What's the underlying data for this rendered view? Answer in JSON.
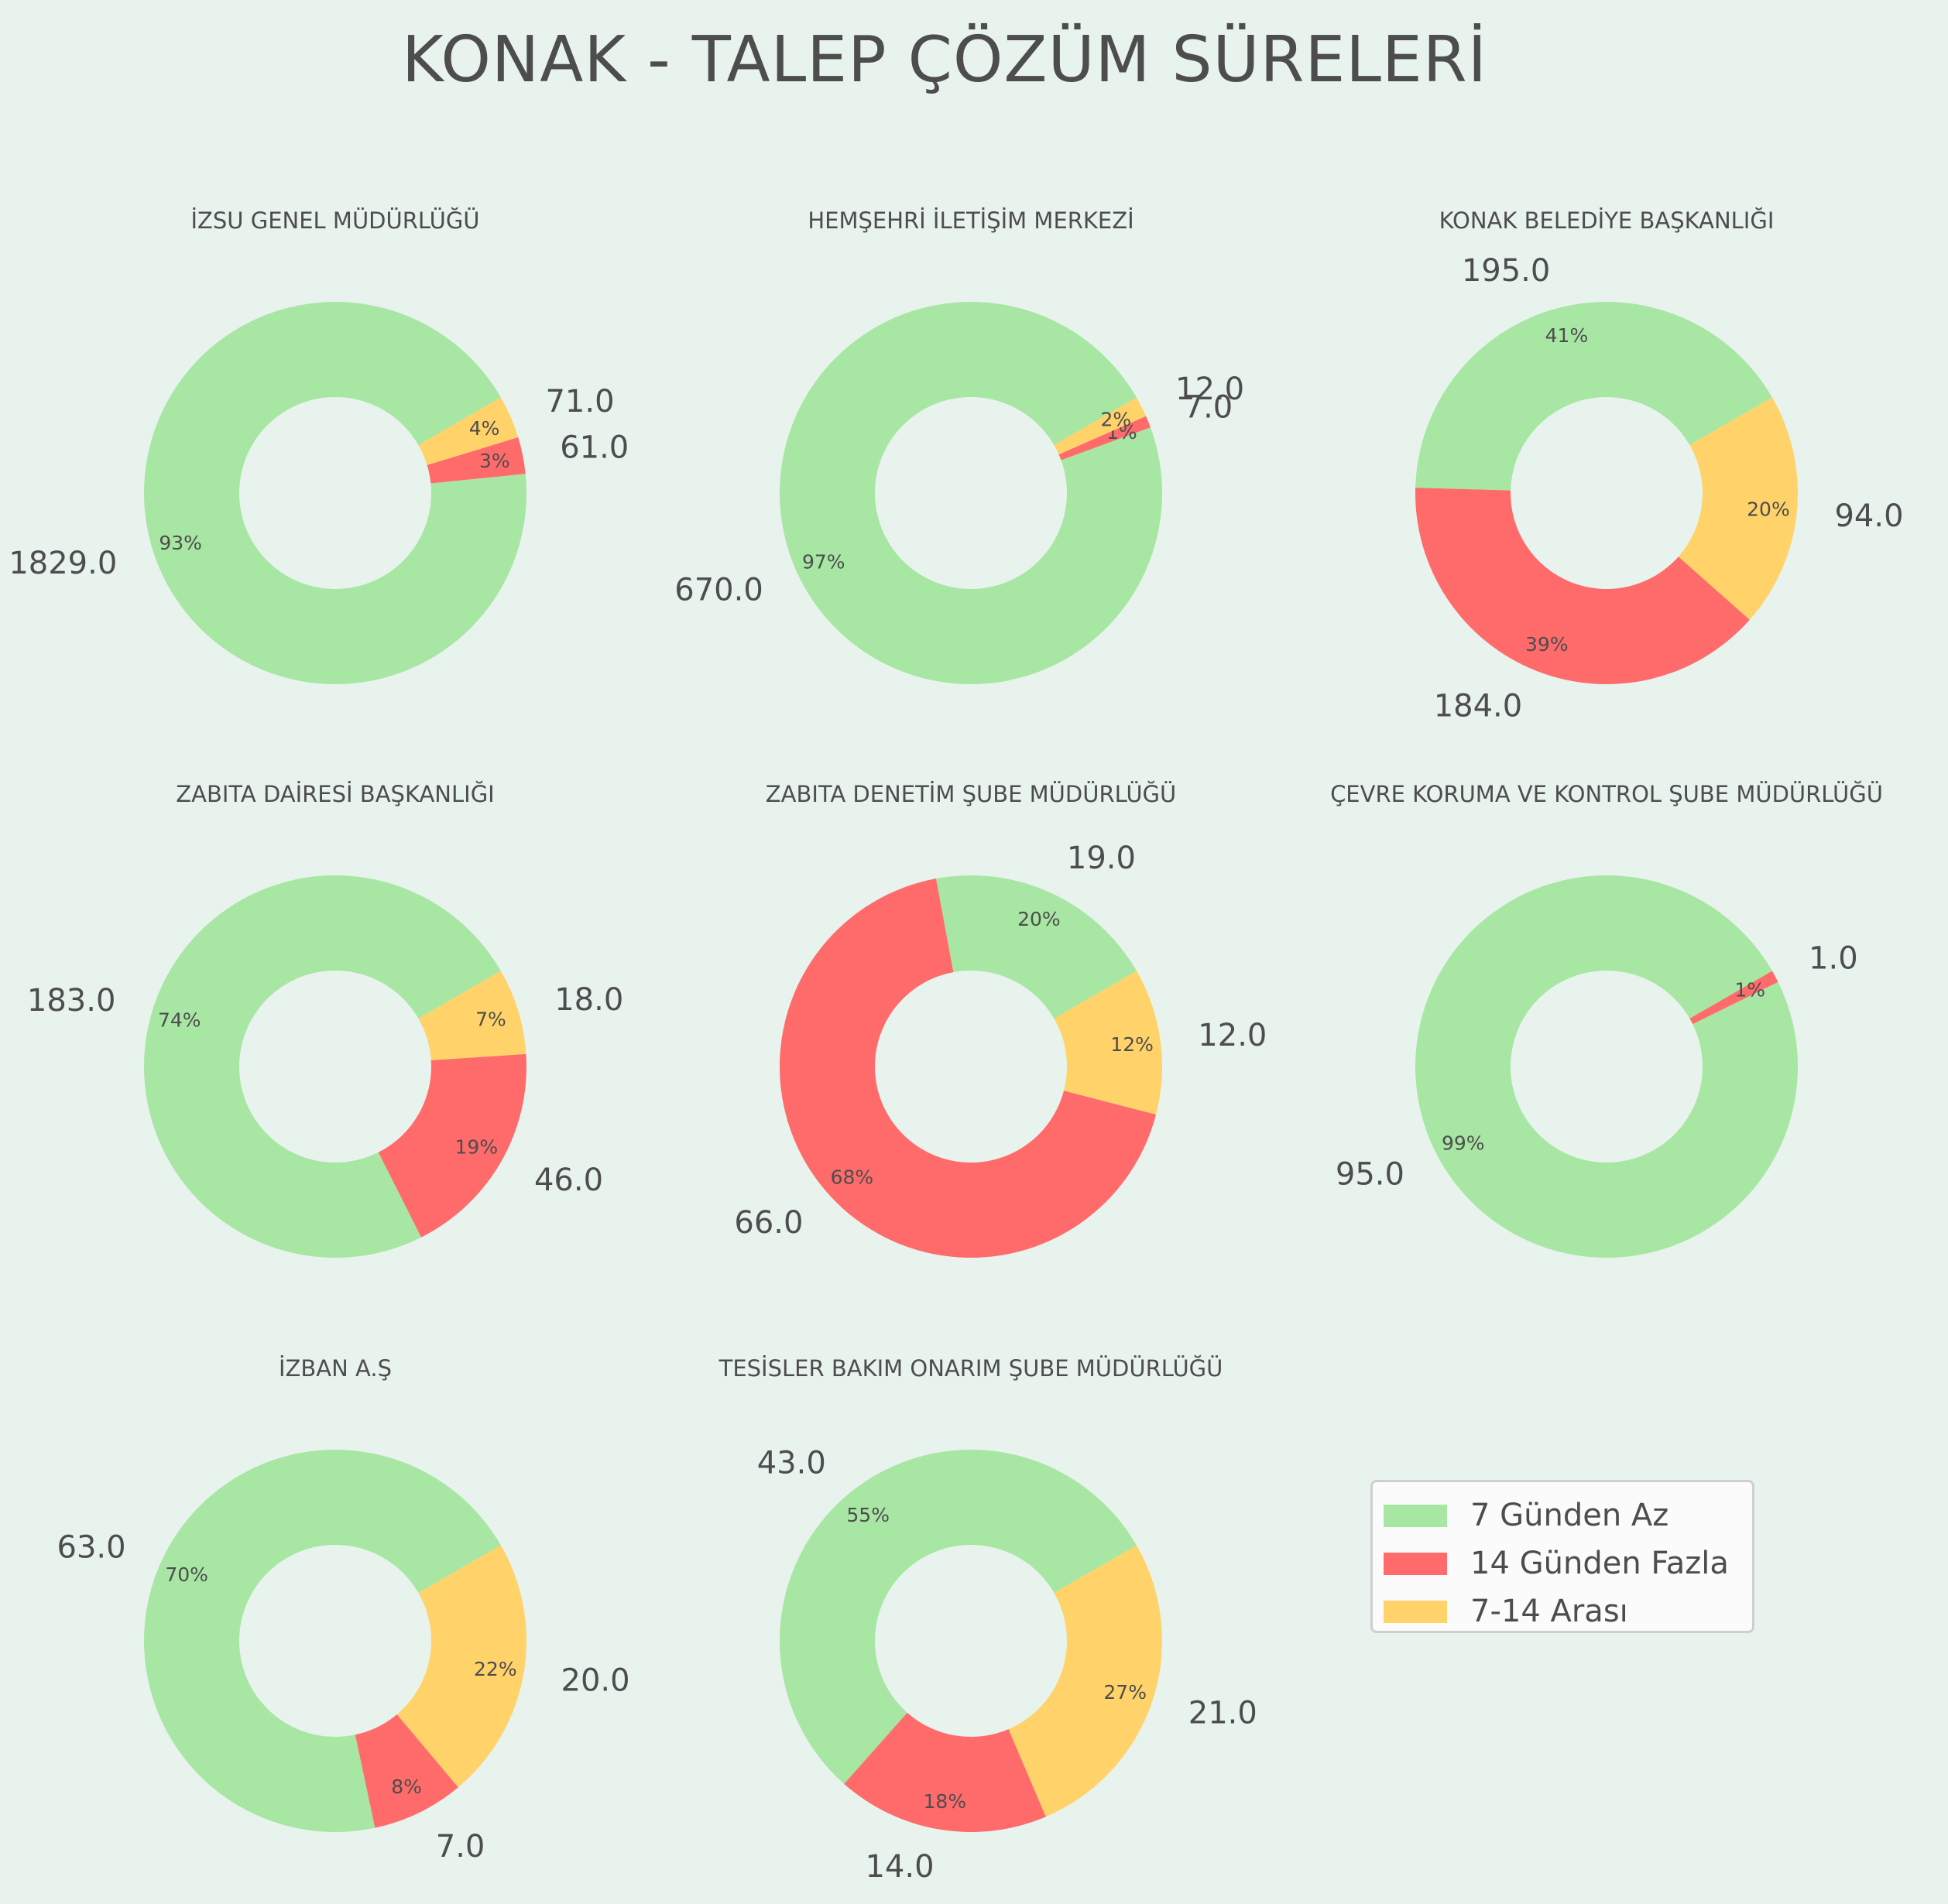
{
  "title": "KONAK - TALEP ÇÖZÜM SÜRELERİ",
  "legend": {
    "items": [
      {
        "label": "7 Günden Az",
        "color": "#a8e6a3"
      },
      {
        "label": "14 Günden Fazla",
        "color": "#ff6b6b"
      },
      {
        "label": "7-14 Arası",
        "color": "#ffd369"
      }
    ]
  },
  "chart_data": [
    {
      "type": "pie",
      "title": "İZSU GENEL MÜDÜRLÜĞÜ",
      "categories": [
        "7 Günden Az",
        "14 Günden Fazla",
        "7-14 Arası"
      ],
      "values": [
        1829.0,
        61.0,
        71.0
      ],
      "value_labels": [
        "1829.0",
        "61.0",
        "71.0"
      ],
      "percent_labels": [
        "93%",
        "3%",
        "4%"
      ]
    },
    {
      "type": "pie",
      "title": "HEMŞEHRİ İLETİŞİM MERKEZİ",
      "categories": [
        "7 Günden Az",
        "14 Günden Fazla",
        "7-14 Arası"
      ],
      "values": [
        670.0,
        7.0,
        12.0
      ],
      "value_labels": [
        "670.0",
        "7.0",
        "12.0"
      ],
      "percent_labels": [
        "97%",
        "1%",
        "2%"
      ]
    },
    {
      "type": "pie",
      "title": "KONAK BELEDİYE BAŞKANLIĞI",
      "categories": [
        "7 Günden Az",
        "14 Günden Fazla",
        "7-14 Arası"
      ],
      "values": [
        195.0,
        184.0,
        94.0
      ],
      "value_labels": [
        "195.0",
        "184.0",
        "94.0"
      ],
      "percent_labels": [
        "41%",
        "39%",
        "20%"
      ]
    },
    {
      "type": "pie",
      "title": "ZABITA DAİRESİ BAŞKANLIĞI",
      "categories": [
        "7 Günden Az",
        "14 Günden Fazla",
        "7-14 Arası"
      ],
      "values": [
        183.0,
        46.0,
        18.0
      ],
      "value_labels": [
        "183.0",
        "46.0",
        "18.0"
      ],
      "percent_labels": [
        "74%",
        "19%",
        "7%"
      ]
    },
    {
      "type": "pie",
      "title": "ZABITA DENETİM ŞUBE MÜDÜRLÜĞÜ",
      "categories": [
        "7 Günden Az",
        "14 Günden Fazla",
        "7-14 Arası"
      ],
      "values": [
        19.0,
        66.0,
        12.0
      ],
      "value_labels": [
        "19.0",
        "66.0",
        "12.0"
      ],
      "percent_labels": [
        "20%",
        "68%",
        "12%"
      ]
    },
    {
      "type": "pie",
      "title": "ÇEVRE KORUMA VE KONTROL ŞUBE MÜDÜRLÜĞÜ",
      "categories": [
        "7 Günden Az",
        "14 Günden Fazla"
      ],
      "values": [
        95.0,
        1.0
      ],
      "value_labels": [
        "95.0",
        "1.0"
      ],
      "percent_labels": [
        "99%",
        "1%"
      ]
    },
    {
      "type": "pie",
      "title": "İZBAN A.Ş",
      "categories": [
        "7 Günden Az",
        "14 Günden Fazla",
        "7-14 Arası"
      ],
      "values": [
        63.0,
        7.0,
        20.0
      ],
      "value_labels": [
        "63.0",
        "7.0",
        "20.0"
      ],
      "percent_labels": [
        "70%",
        "8%",
        "22%"
      ]
    },
    {
      "type": "pie",
      "title": "TESİSLER BAKIM ONARIM ŞUBE MÜDÜRLÜĞÜ",
      "categories": [
        "7 Günden Az",
        "14 Günden Fazla",
        "7-14 Arası"
      ],
      "values": [
        43.0,
        14.0,
        21.0
      ],
      "value_labels": [
        "43.0",
        "14.0",
        "21.0"
      ],
      "percent_labels": [
        "55%",
        "18%",
        "27%"
      ]
    }
  ]
}
